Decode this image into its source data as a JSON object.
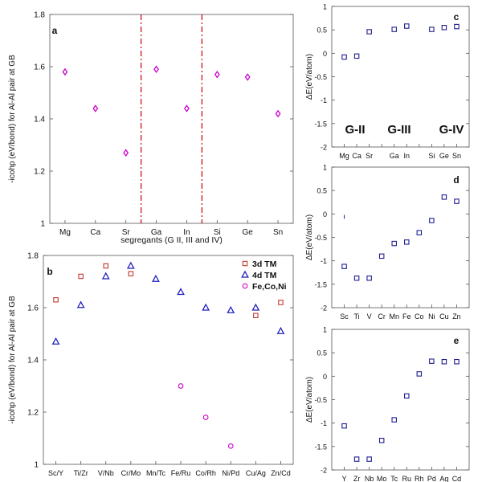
{
  "colors": {
    "magenta": "#cc00cc",
    "red": "#c0392b",
    "blue": "#1f1fbf",
    "navy": "#1f1f8f",
    "divider": "#cc0000"
  },
  "chart_data": [
    {
      "id": "a",
      "type": "scatter",
      "panel_label": "a",
      "xlabel": "segregants (G II, III and IV)",
      "ylabel": "-icohp (eV/bond) for Al-Al pair at GB",
      "ylim": [
        1,
        1.8
      ],
      "yticks": [
        1,
        1.2,
        1.4,
        1.6,
        1.8
      ],
      "categories": [
        "Mg",
        "Ca",
        "Sr",
        "Ga",
        "In",
        "Si",
        "Ge",
        "Sn"
      ],
      "group_dividers_after": [
        3,
        5
      ],
      "series": [
        {
          "marker": "diamond",
          "color": "#cc00cc",
          "values": [
            1.58,
            1.44,
            1.27,
            1.59,
            1.44,
            1.57,
            1.56,
            1.42
          ]
        }
      ],
      "grid": false
    },
    {
      "id": "b",
      "type": "scatter",
      "panel_label": "b",
      "xlabel": "",
      "ylabel": "-icohp (eV/bond) for Al-Al pair at GB",
      "ylim": [
        1,
        1.8
      ],
      "yticks": [
        1,
        1.2,
        1.4,
        1.6,
        1.8
      ],
      "categories": [
        "Sc/Y",
        "Ti/Zr",
        "V/Nb",
        "Cr/Mo",
        "Mn/Tc",
        "Fe/Ru",
        "Co/Rh",
        "Ni/Pd",
        "Cu/Ag",
        "Zn/Cd"
      ],
      "legend_position": "top-right",
      "series": [
        {
          "name": "3d TM",
          "marker": "square",
          "color": "#c0392b",
          "values": [
            1.63,
            1.72,
            1.76,
            1.73,
            null,
            null,
            null,
            null,
            1.57,
            1.62
          ]
        },
        {
          "name": "4d TM",
          "marker": "triangle",
          "color": "#1f1fbf",
          "values": [
            1.47,
            1.61,
            1.72,
            1.76,
            1.71,
            1.66,
            1.6,
            1.59,
            1.6,
            1.51
          ]
        },
        {
          "name": "Fe,Co,Ni",
          "marker": "circle",
          "color": "#cc00cc",
          "values": [
            null,
            null,
            null,
            null,
            null,
            1.3,
            1.18,
            1.07,
            null,
            null
          ]
        }
      ],
      "grid": false
    },
    {
      "id": "c",
      "type": "scatter",
      "panel_label": "c",
      "ylabel": "ΔE(eV/atom)",
      "ylim": [
        -2,
        1
      ],
      "yticks": [
        -2,
        -1.5,
        -1,
        -0.5,
        0,
        0.5,
        1
      ],
      "categories": [
        "Mg",
        "Ca",
        "Sr",
        "",
        "Ga",
        "In",
        "",
        "Si",
        "Ge",
        "Sn"
      ],
      "group_labels": [
        "G-II",
        "G-III",
        "G-IV"
      ],
      "series": [
        {
          "marker": "square",
          "color": "#1f1f8f",
          "values": [
            -0.08,
            -0.06,
            0.46,
            null,
            0.51,
            0.58,
            null,
            0.51,
            0.55,
            0.57
          ]
        }
      ],
      "grid": false
    },
    {
      "id": "d",
      "type": "scatter",
      "panel_label": "d",
      "ylabel": "ΔE(eV/atom)",
      "ylim": [
        -2,
        1
      ],
      "yticks": [
        -2,
        -1.5,
        -1,
        -0.5,
        0,
        0.5,
        1
      ],
      "categories": [
        "Sc",
        "Ti",
        "V",
        "Cr",
        "Mn",
        "Fe",
        "Co",
        "Ni",
        "Cu",
        "Zn"
      ],
      "series": [
        {
          "marker": "square",
          "color": "#1f1f8f",
          "values": [
            -1.12,
            -1.37,
            -1.37,
            -0.9,
            -0.63,
            -0.6,
            -0.4,
            -0.14,
            0.36,
            0.27
          ]
        }
      ],
      "grid": false
    },
    {
      "id": "e",
      "type": "scatter",
      "panel_label": "e",
      "ylabel": "ΔE(eV/atom)",
      "ylim": [
        -2,
        1
      ],
      "yticks": [
        -2,
        -1.5,
        -1,
        -0.5,
        0,
        0.5,
        1
      ],
      "categories": [
        "Y",
        "Zr",
        "Nb",
        "Mo",
        "Tc",
        "Ru",
        "Rh",
        "Pd",
        "Ag",
        "Cd"
      ],
      "series": [
        {
          "marker": "square",
          "color": "#1f1f8f",
          "values": [
            -1.06,
            -1.77,
            -1.77,
            -1.37,
            -0.93,
            -0.42,
            0.05,
            0.32,
            0.31,
            0.31
          ]
        }
      ],
      "grid": false
    }
  ]
}
